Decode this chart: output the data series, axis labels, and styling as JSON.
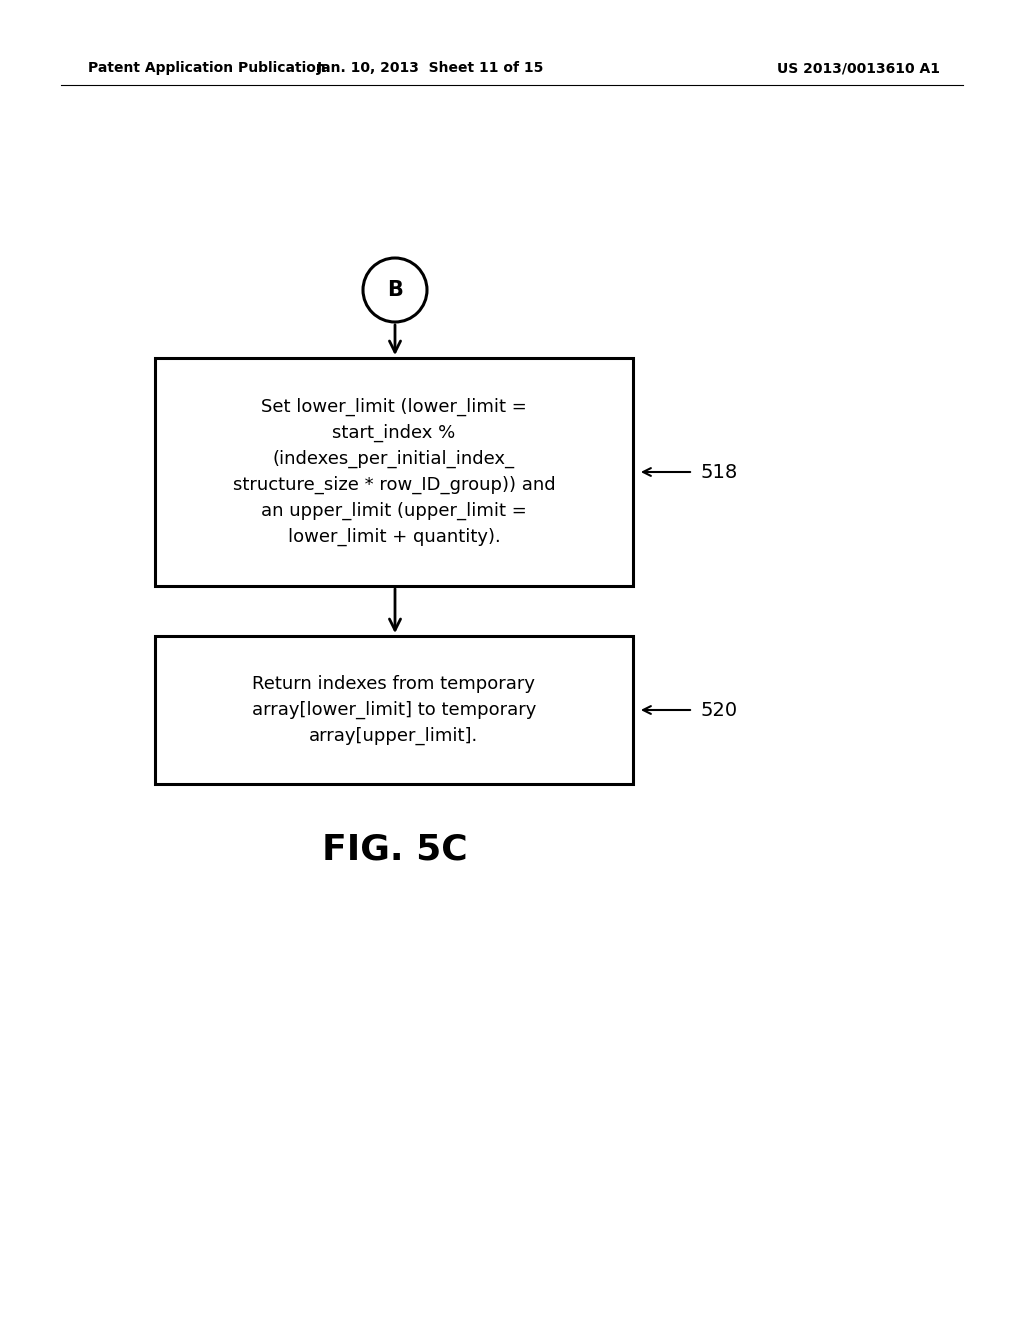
{
  "bg_color": "#ffffff",
  "header_left": "Patent Application Publication",
  "header_center": "Jan. 10, 2013  Sheet 11 of 15",
  "header_right": "US 2013/0013610 A1",
  "text_color": "#000000",
  "arrow_color": "#000000",
  "circle_label": "B",
  "box1_label_lines": [
    "Set lower_limit (lower_limit =",
    "start_index %",
    "(indexes_per_initial_index_",
    "structure_size * row_ID_group)) and",
    "an upper_limit (upper_limit =",
    "lower_limit + quantity)."
  ],
  "box1_ref": "518",
  "box2_label_lines": [
    "Return indexes from temporary",
    "array[lower_limit] to temporary",
    "array[upper_limit]."
  ],
  "box2_ref": "520",
  "fig_label": "FIG. 5C"
}
